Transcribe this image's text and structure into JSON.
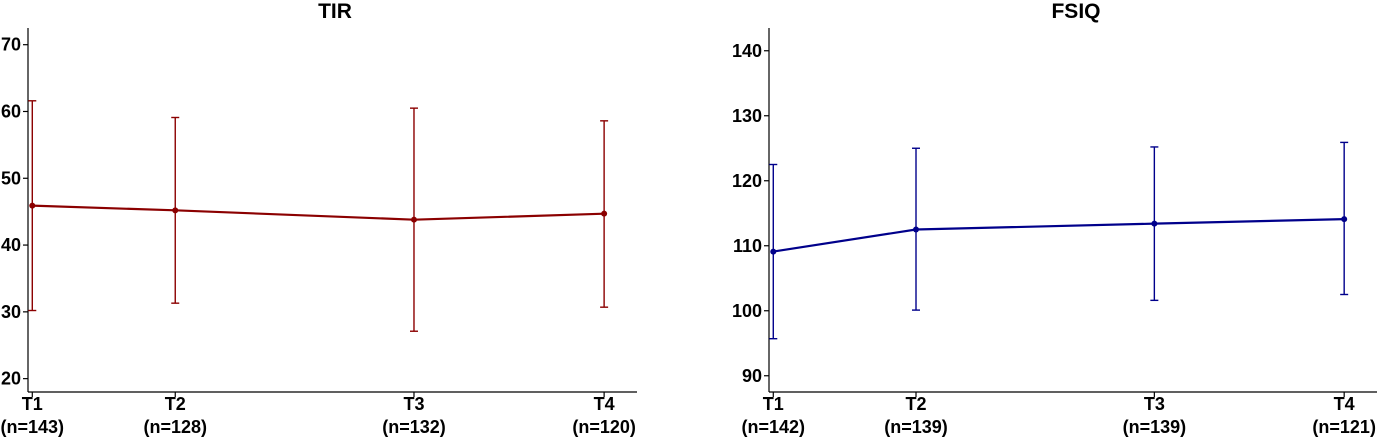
{
  "chart_data": [
    {
      "type": "line",
      "title": "TIR",
      "xlabel": "",
      "ylabel": "",
      "color": "#8b0000",
      "ylim": [
        18,
        72.5
      ],
      "yticks": [
        20,
        30,
        40,
        50,
        60,
        70
      ],
      "categories": [
        {
          "label": "T1",
          "n": "(n=143)",
          "x": 1
        },
        {
          "label": "T2",
          "n": "(n=128)",
          "x": 2
        },
        {
          "label": "T3",
          "n": "(n=132)",
          "x": 3.67
        },
        {
          "label": "T4",
          "n": "(n=120)",
          "x": 5
        }
      ],
      "xlim": [
        0.97,
        5.23
      ],
      "values": [
        45.9,
        45.2,
        43.8,
        44.7
      ],
      "error_low": [
        30.2,
        31.3,
        27.1,
        30.7
      ],
      "error_high": [
        61.6,
        59.1,
        60.5,
        58.6
      ],
      "grid": false
    },
    {
      "type": "line",
      "title": "FSIQ",
      "xlabel": "",
      "ylabel": "",
      "color": "#00008b",
      "ylim": [
        87.5,
        143.5
      ],
      "yticks": [
        90,
        100,
        110,
        120,
        130,
        140
      ],
      "categories": [
        {
          "label": "T1",
          "n": "(n=142)",
          "x": 1
        },
        {
          "label": "T2",
          "n": "(n=139)",
          "x": 2
        },
        {
          "label": "T3",
          "n": "(n=139)",
          "x": 3.67
        },
        {
          "label": "T4",
          "n": "(n=121)",
          "x": 5
        }
      ],
      "xlim": [
        0.97,
        5.23
      ],
      "values": [
        109.1,
        112.5,
        113.4,
        114.1
      ],
      "error_low": [
        95.7,
        100.1,
        101.6,
        102.5
      ],
      "error_high": [
        122.5,
        125.0,
        125.2,
        125.9
      ],
      "grid": false
    }
  ]
}
